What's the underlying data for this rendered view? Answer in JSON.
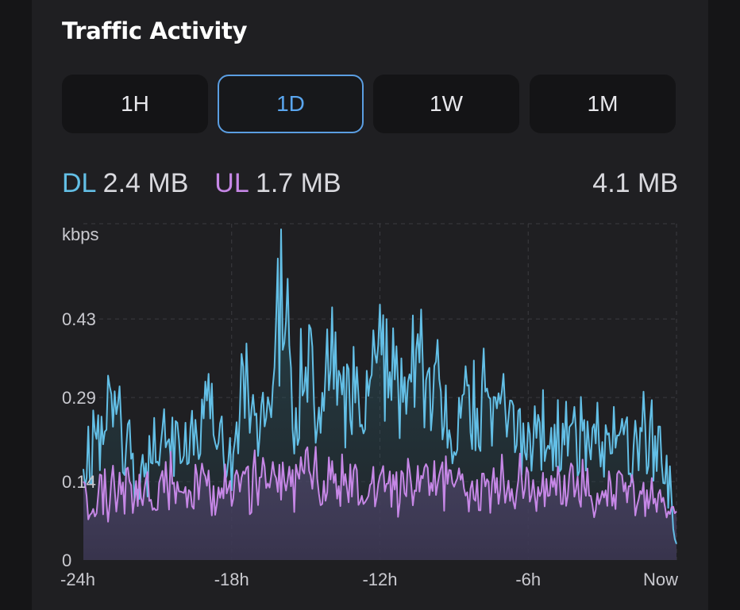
{
  "title": "Traffic Activity",
  "ranges": [
    {
      "label": "1H",
      "active": false
    },
    {
      "label": "1D",
      "active": true
    },
    {
      "label": "1W",
      "active": false
    },
    {
      "label": "1M",
      "active": false
    }
  ],
  "totals": {
    "dl_label": "DL",
    "dl_value": "2.4 MB",
    "ul_label": "UL",
    "ul_value": "1.7 MB",
    "total": "4.1 MB"
  },
  "colors": {
    "dl": "#63bfe6",
    "ul": "#c687e6",
    "accent": "#5aa6ef"
  },
  "chart_data": {
    "type": "line",
    "ylabel": "kbps",
    "yticks": [
      "0",
      "0.14",
      "0.29",
      "0.43"
    ],
    "ylim": [
      0,
      0.6
    ],
    "xticks": [
      "-24h",
      "-18h",
      "-12h",
      "-6h",
      "Now"
    ],
    "xlim": [
      -24,
      0
    ],
    "grid": true,
    "series": [
      {
        "name": "DL",
        "color": "#63bfe6",
        "x": [
          -24,
          -23,
          -22,
          -21,
          -20,
          -19,
          -18,
          -17.5,
          -17,
          -16.5,
          -16,
          -15.5,
          -15,
          -14.5,
          -14,
          -13.5,
          -13,
          -12.5,
          -12,
          -11.5,
          -11,
          -10.5,
          -10,
          -9.5,
          -9,
          -8,
          -7,
          -6,
          -5,
          -4,
          -3,
          -2,
          -1,
          -0.5,
          0
        ],
        "values": [
          0.18,
          0.34,
          0.2,
          0.23,
          0.26,
          0.3,
          0.24,
          0.42,
          0.28,
          0.35,
          0.6,
          0.3,
          0.5,
          0.3,
          0.49,
          0.33,
          0.43,
          0.36,
          0.41,
          0.43,
          0.35,
          0.42,
          0.38,
          0.32,
          0.3,
          0.34,
          0.3,
          0.27,
          0.26,
          0.26,
          0.25,
          0.26,
          0.25,
          0.24,
          0.03
        ]
      },
      {
        "name": "UL",
        "color": "#c687e6",
        "x": [
          -24,
          -22,
          -20,
          -18,
          -16,
          -14,
          -12,
          -10,
          -8,
          -6,
          -4,
          -2,
          0
        ],
        "values": [
          0.14,
          0.15,
          0.16,
          0.16,
          0.17,
          0.18,
          0.16,
          0.17,
          0.16,
          0.16,
          0.15,
          0.15,
          0.1
        ]
      }
    ]
  }
}
